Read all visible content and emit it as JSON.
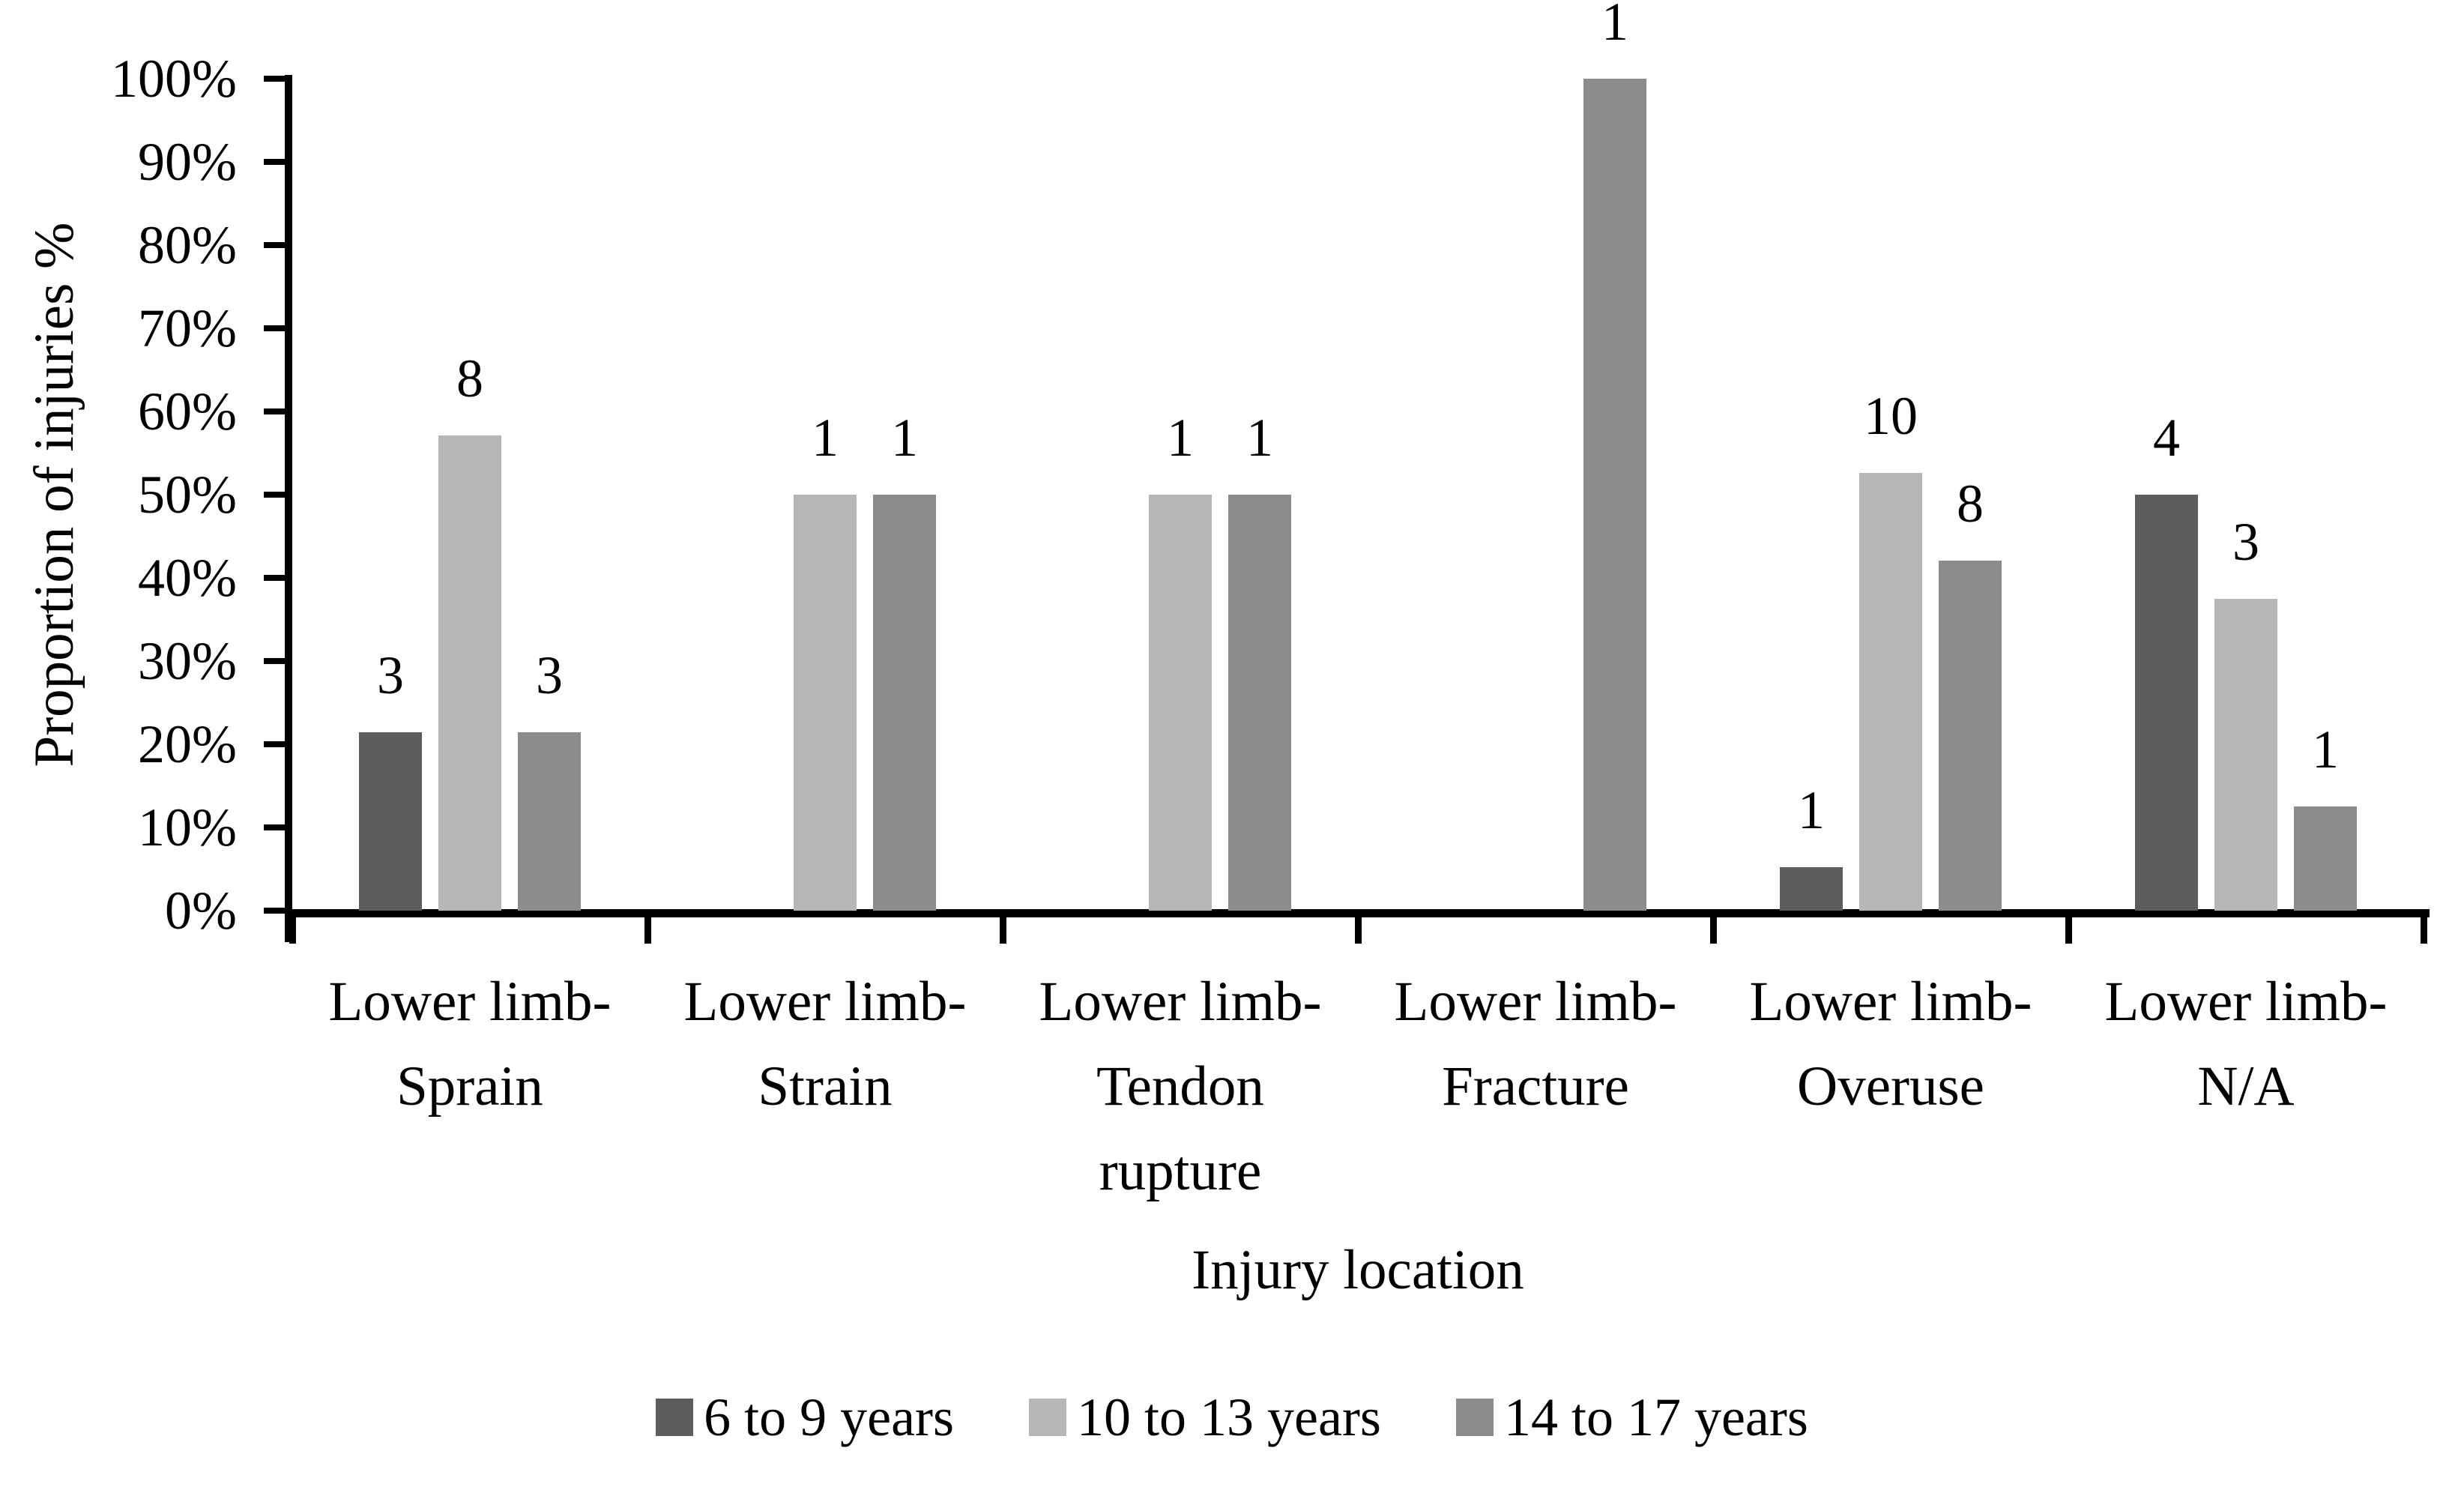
{
  "chart_data": {
    "type": "bar",
    "title": "",
    "ylabel": "Proportion of injuries %",
    "xlabel": "Injury location",
    "ylim": [
      0,
      100
    ],
    "ytick_step": 10,
    "ytick_labels": [
      "0%",
      "10%",
      "20%",
      "30%",
      "40%",
      "50%",
      "60%",
      "70%",
      "80%",
      "90%",
      "100%"
    ],
    "grid": false,
    "legend_position": "bottom",
    "categories": [
      "Lower limb-Sprain",
      "Lower limb-Strain",
      "Lower limb-Tendon rupture",
      "Lower limb-Fracture",
      "Lower limb-Overuse",
      "Lower limb-N/A"
    ],
    "category_label_lines": [
      [
        "Lower limb-",
        "Sprain"
      ],
      [
        "Lower limb-",
        "Strain"
      ],
      [
        "Lower limb-",
        "Tendon",
        "rupture"
      ],
      [
        "Lower limb-",
        "Fracture"
      ],
      [
        "Lower limb-",
        "Overuse"
      ],
      [
        "Lower limb-",
        "N/A"
      ]
    ],
    "bar_value_labels_shown": true,
    "series": [
      {
        "name": "6 to 9 years",
        "color": "#5d5d5d",
        "counts": [
          3,
          null,
          null,
          null,
          1,
          4
        ],
        "percent": [
          21.43,
          null,
          null,
          null,
          5.26,
          50
        ]
      },
      {
        "name": "10 to 13 years",
        "color": "#b6b6b6",
        "counts": [
          8,
          1,
          1,
          null,
          10,
          3
        ],
        "percent": [
          57.14,
          50,
          50,
          null,
          52.63,
          37.5
        ]
      },
      {
        "name": "14 to 17 years",
        "color": "#8c8c8c",
        "counts": [
          3,
          1,
          1,
          1,
          8,
          1
        ],
        "percent": [
          21.43,
          50,
          50,
          100,
          42.11,
          12.5
        ]
      }
    ]
  }
}
